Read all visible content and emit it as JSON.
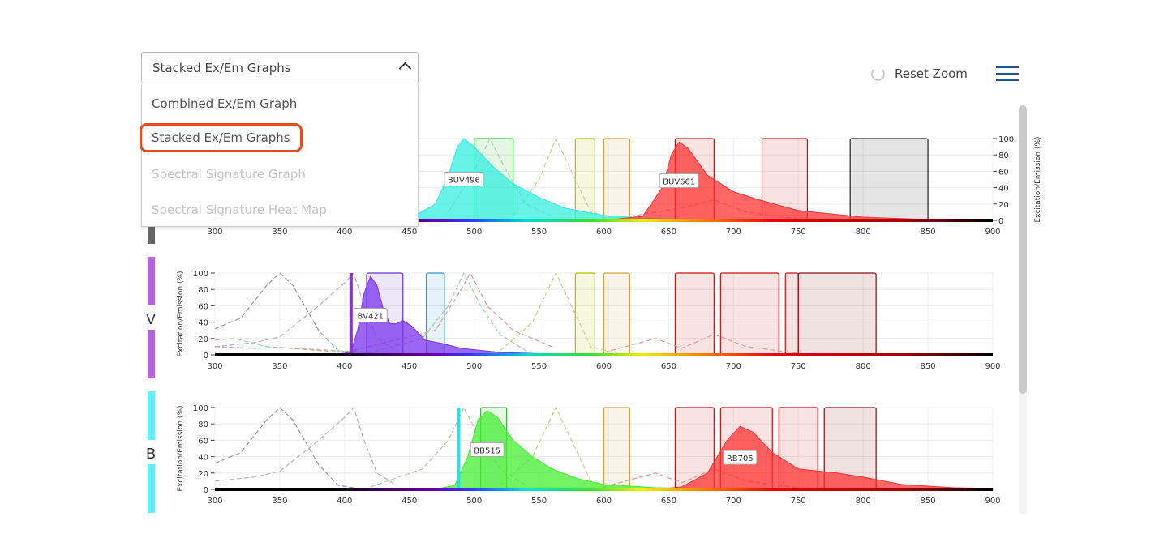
{
  "dropdown": {
    "selected": "Stacked Ex/Em Graphs",
    "options": [
      {
        "label": "Combined Ex/Em Graph",
        "enabled": true
      },
      {
        "label": "Stacked Ex/Em Graphs",
        "enabled": true,
        "highlighted": true
      },
      {
        "label": "Spectral Signature Graph",
        "enabled": false
      },
      {
        "label": "Spectral Signature Heat Map",
        "enabled": false
      }
    ]
  },
  "toolbar": {
    "reset_zoom": "Reset Zoom",
    "reset_icon": "refresh-icon",
    "menu_icon": "hamburger-icon"
  },
  "chart_data": [
    {
      "type": "area",
      "laser": "",
      "laser_color": "#666666",
      "ylabel": "Excitation/Emission (%)",
      "xlim": [
        300,
        900
      ],
      "ylim": [
        0,
        100
      ],
      "grid": true,
      "xticks": [
        300,
        350,
        400,
        450,
        500,
        550,
        600,
        650,
        700,
        750,
        800,
        850,
        900
      ],
      "yticks": [
        0,
        20,
        40,
        60,
        80,
        100
      ],
      "filters": [
        {
          "range": [
            500,
            530
          ],
          "color": "#33bb33"
        },
        {
          "range": [
            578,
            593
          ],
          "color": "#bbbb00"
        },
        {
          "range": [
            600,
            620
          ],
          "color": "#d9a040"
        },
        {
          "range": [
            655,
            685
          ],
          "color": "#cc1111"
        },
        {
          "range": [
            722,
            757
          ],
          "color": "#cc1111"
        },
        {
          "range": [
            790,
            850
          ],
          "color": "#222222"
        }
      ],
      "laser_line": null,
      "emissions": [
        {
          "label": "BUV496",
          "color": "#33eedd",
          "points": [
            [
              450,
              2
            ],
            [
              470,
              20
            ],
            [
              480,
              55
            ],
            [
              487,
              90
            ],
            [
              492,
              100
            ],
            [
              500,
              90
            ],
            [
              515,
              65
            ],
            [
              530,
              45
            ],
            [
              550,
              28
            ],
            [
              570,
              15
            ],
            [
              600,
              6
            ],
            [
              640,
              2
            ],
            [
              700,
              0
            ]
          ]
        },
        {
          "label": "BUV661",
          "color": "#ff3333",
          "points": [
            [
              600,
              0
            ],
            [
              630,
              5
            ],
            [
              645,
              40
            ],
            [
              652,
              80
            ],
            [
              658,
              96
            ],
            [
              665,
              88
            ],
            [
              680,
              55
            ],
            [
              700,
              35
            ],
            [
              720,
              25
            ],
            [
              750,
              12
            ],
            [
              800,
              4
            ],
            [
              850,
              1
            ],
            [
              900,
              0
            ]
          ]
        }
      ],
      "dashed": [
        {
          "color": "#aaccaa",
          "points": [
            [
              480,
              10
            ],
            [
              500,
              60
            ],
            [
              512,
              100
            ],
            [
              525,
              60
            ],
            [
              540,
              20
            ],
            [
              560,
              5
            ]
          ]
        },
        {
          "color": "#cccc88",
          "points": [
            [
              530,
              5
            ],
            [
              550,
              50
            ],
            [
              563,
              100
            ],
            [
              575,
              60
            ],
            [
              590,
              10
            ],
            [
              610,
              2
            ]
          ]
        },
        {
          "color": "#dd9999",
          "points": [
            [
              620,
              5
            ],
            [
              660,
              15
            ],
            [
              685,
              25
            ],
            [
              710,
              10
            ],
            [
              750,
              2
            ]
          ]
        }
      ]
    },
    {
      "type": "area",
      "laser": "V",
      "laser_color": "#b366dd",
      "ylabel": "Excitation/Emission (%)",
      "xlim": [
        300,
        900
      ],
      "ylim": [
        0,
        100
      ],
      "grid": true,
      "xticks": [
        300,
        350,
        400,
        450,
        500,
        550,
        600,
        650,
        700,
        750,
        800,
        850,
        900
      ],
      "yticks": [
        0,
        20,
        40,
        60,
        80,
        100
      ],
      "filters": [
        {
          "range": [
            417,
            445
          ],
          "color": "#6633cc"
        },
        {
          "range": [
            463,
            477
          ],
          "color": "#3399cc"
        },
        {
          "range": [
            578,
            593
          ],
          "color": "#bbbb00"
        },
        {
          "range": [
            600,
            620
          ],
          "color": "#d9a040"
        },
        {
          "range": [
            655,
            685
          ],
          "color": "#cc1111"
        },
        {
          "range": [
            690,
            735
          ],
          "color": "#cc1111"
        },
        {
          "range": [
            740,
            750
          ],
          "color": "#cc1111"
        },
        {
          "range": [
            750,
            810
          ],
          "color": "#881111"
        }
      ],
      "laser_line": {
        "nm": 405,
        "color": "#8833cc"
      },
      "emissions": [
        {
          "label": "BV421",
          "color": "#7a33ee",
          "points": [
            [
              395,
              0
            ],
            [
              405,
              4
            ],
            [
              410,
              30
            ],
            [
              415,
              75
            ],
            [
              420,
              96
            ],
            [
              425,
              85
            ],
            [
              430,
              55
            ],
            [
              435,
              38
            ],
            [
              440,
              38
            ],
            [
              445,
              42
            ],
            [
              452,
              35
            ],
            [
              462,
              18
            ],
            [
              475,
              14
            ],
            [
              490,
              8
            ],
            [
              520,
              3
            ],
            [
              560,
              1
            ],
            [
              600,
              0
            ]
          ]
        }
      ],
      "dashed": [
        {
          "color": "#999999",
          "points": [
            [
              300,
              32
            ],
            [
              320,
              45
            ],
            [
              340,
              85
            ],
            [
              350,
              100
            ],
            [
              360,
              85
            ],
            [
              380,
              30
            ],
            [
              395,
              5
            ],
            [
              410,
              1
            ]
          ]
        },
        {
          "color": "#bbaacc",
          "points": [
            [
              300,
              10
            ],
            [
              330,
              15
            ],
            [
              350,
              22
            ],
            [
              380,
              60
            ],
            [
              400,
              88
            ],
            [
              407,
              100
            ],
            [
              415,
              60
            ],
            [
              425,
              20
            ],
            [
              440,
              5
            ]
          ]
        },
        {
          "color": "#aaccaa",
          "points": [
            [
              300,
              18
            ],
            [
              315,
              20
            ],
            [
              340,
              10
            ],
            [
              420,
              3
            ],
            [
              460,
              20
            ],
            [
              480,
              60
            ],
            [
              492,
              100
            ],
            [
              505,
              60
            ],
            [
              520,
              25
            ],
            [
              540,
              5
            ]
          ]
        },
        {
          "color": "#dd9999",
          "points": [
            [
              300,
              10
            ],
            [
              330,
              8
            ],
            [
              350,
              9
            ],
            [
              400,
              3
            ],
            [
              470,
              30
            ],
            [
              490,
              80
            ],
            [
              497,
              100
            ],
            [
              510,
              60
            ],
            [
              530,
              30
            ],
            [
              560,
              10
            ]
          ]
        },
        {
          "color": "#cccc88",
          "points": [
            [
              520,
              5
            ],
            [
              545,
              40
            ],
            [
              563,
              100
            ],
            [
              575,
              60
            ],
            [
              590,
              10
            ],
            [
              610,
              2
            ]
          ]
        },
        {
          "color": "#dd9999",
          "points": [
            [
              600,
              3
            ],
            [
              640,
              20
            ],
            [
              660,
              8
            ],
            [
              685,
              25
            ],
            [
              710,
              10
            ],
            [
              750,
              2
            ]
          ]
        }
      ]
    },
    {
      "type": "area",
      "laser": "B",
      "laser_color": "#66eeff",
      "ylabel": "Excitation/Emission (%)",
      "xlim": [
        300,
        900
      ],
      "ylim": [
        0,
        100
      ],
      "grid": true,
      "xticks": [
        300,
        350,
        400,
        450,
        500,
        550,
        600,
        650,
        700,
        750,
        800,
        850,
        900
      ],
      "yticks": [
        0,
        20,
        40,
        60,
        80,
        100
      ],
      "filters": [
        {
          "range": [
            505,
            525
          ],
          "color": "#33bb33"
        },
        {
          "range": [
            600,
            620
          ],
          "color": "#d9a040"
        },
        {
          "range": [
            655,
            685
          ],
          "color": "#cc1111"
        },
        {
          "range": [
            690,
            730
          ],
          "color": "#cc1111"
        },
        {
          "range": [
            735,
            765
          ],
          "color": "#cc1111"
        },
        {
          "range": [
            770,
            810
          ],
          "color": "#881111"
        }
      ],
      "laser_line": {
        "nm": 488,
        "color": "#33dddd"
      },
      "emissions": [
        {
          "label": "BB515",
          "color": "#44ee33",
          "points": [
            [
              470,
              0
            ],
            [
              485,
              5
            ],
            [
              495,
              40
            ],
            [
              503,
              85
            ],
            [
              510,
              96
            ],
            [
              518,
              88
            ],
            [
              530,
              60
            ],
            [
              545,
              40
            ],
            [
              560,
              25
            ],
            [
              580,
              13
            ],
            [
              600,
              6
            ],
            [
              640,
              2
            ],
            [
              700,
              0
            ]
          ]
        },
        {
          "label": "RB705",
          "color": "#ff3333",
          "points": [
            [
              640,
              0
            ],
            [
              660,
              3
            ],
            [
              680,
              20
            ],
            [
              695,
              60
            ],
            [
              705,
              77
            ],
            [
              715,
              70
            ],
            [
              730,
              45
            ],
            [
              750,
              25
            ],
            [
              780,
              20
            ],
            [
              800,
              15
            ],
            [
              830,
              6
            ],
            [
              870,
              2
            ],
            [
              900,
              1
            ]
          ]
        }
      ],
      "dashed": [
        {
          "color": "#999999",
          "points": [
            [
              300,
              32
            ],
            [
              320,
              45
            ],
            [
              340,
              85
            ],
            [
              350,
              100
            ],
            [
              360,
              85
            ],
            [
              380,
              30
            ],
            [
              395,
              5
            ],
            [
              410,
              1
            ]
          ]
        },
        {
          "color": "#bbaacc",
          "points": [
            [
              300,
              10
            ],
            [
              330,
              15
            ],
            [
              350,
              22
            ],
            [
              380,
              60
            ],
            [
              400,
              88
            ],
            [
              407,
              100
            ],
            [
              415,
              60
            ],
            [
              425,
              20
            ],
            [
              440,
              5
            ]
          ]
        },
        {
          "color": "#aaccaa",
          "points": [
            [
              420,
              3
            ],
            [
              460,
              25
            ],
            [
              480,
              60
            ],
            [
              492,
              100
            ],
            [
              505,
              60
            ],
            [
              520,
              25
            ],
            [
              540,
              5
            ]
          ]
        },
        {
          "color": "#cccc88",
          "points": [
            [
              520,
              5
            ],
            [
              545,
              40
            ],
            [
              563,
              100
            ],
            [
              575,
              60
            ],
            [
              590,
              10
            ],
            [
              610,
              2
            ]
          ]
        },
        {
          "color": "#dd9999",
          "points": [
            [
              600,
              3
            ],
            [
              640,
              20
            ],
            [
              660,
              8
            ],
            [
              685,
              25
            ],
            [
              710,
              10
            ],
            [
              750,
              2
            ]
          ]
        }
      ]
    }
  ]
}
